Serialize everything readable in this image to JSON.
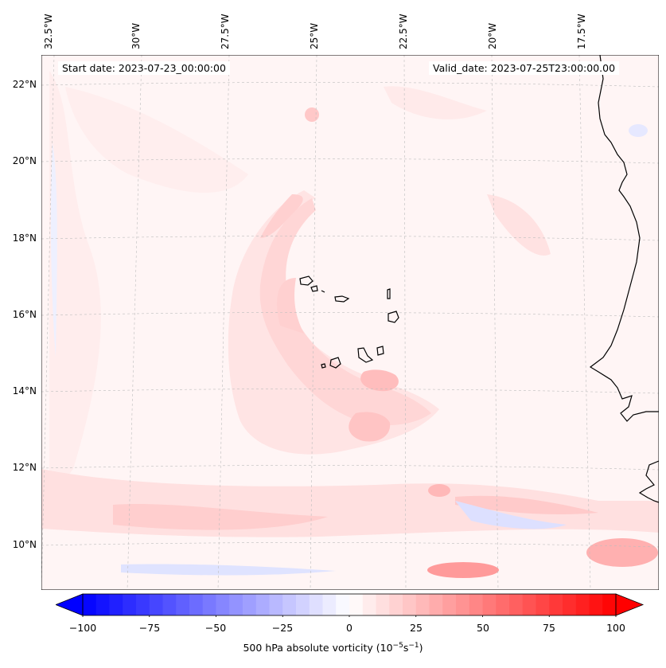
{
  "info": {
    "start_date": "Start date: 2023-07-23_00:00:00",
    "valid_date": "Valid_date: 2023-07-25T23:00:00.00"
  },
  "lon_labels": [
    "32.5°W",
    "30°W",
    "27.5°W",
    "25°W",
    "22.5°W",
    "20°W",
    "17.5°W"
  ],
  "lat_labels": [
    "22°N",
    "20°N",
    "18°N",
    "16°N",
    "14°N",
    "12°N",
    "10°N"
  ],
  "colorbar": {
    "min": -100,
    "max": 100,
    "ticks": [
      "−100",
      "−75",
      "−50",
      "−25",
      "0",
      "25",
      "50",
      "75",
      "100"
    ],
    "title": "500 hPa absolute vorticity (10",
    "title_exp1": "−5",
    "title_mid": "s",
    "title_exp2": "−1",
    "title_end": ")",
    "negative_color": "#0000ff",
    "positive_color": "#ff0000"
  },
  "map": {
    "field": "500 hPa absolute vorticity",
    "background_color": "#fff5f5"
  }
}
